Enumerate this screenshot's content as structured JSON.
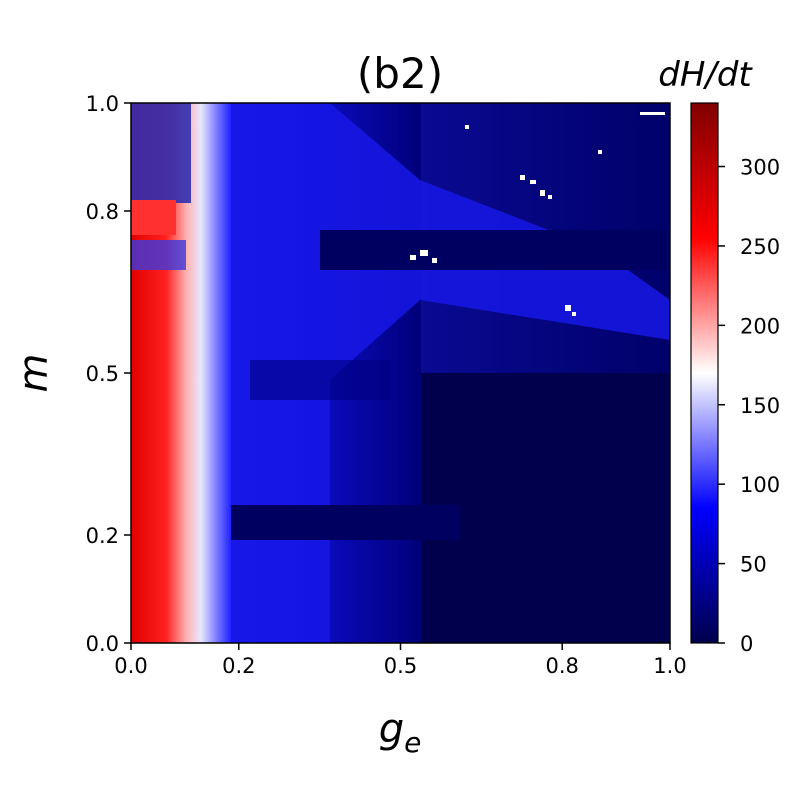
{
  "chart_data": {
    "type": "heatmap",
    "title": "(b2)",
    "xlabel": "g",
    "xlabel_subscript": "e",
    "ylabel": "m",
    "xlim": [
      0.0,
      1.0
    ],
    "ylim": [
      0.0,
      1.0
    ],
    "x_ticks": [
      "0.0",
      "0.2",
      "0.5",
      "0.8",
      "1.0"
    ],
    "x_tick_values": [
      0.0,
      0.2,
      0.5,
      0.8,
      1.0
    ],
    "y_ticks": [
      "0.0",
      "0.2",
      "0.5",
      "0.8",
      "1.0"
    ],
    "y_tick_values": [
      0.0,
      0.2,
      0.5,
      0.8,
      1.0
    ],
    "colorbar": {
      "label": "dH/dt",
      "colormap": "seismic",
      "range": [
        0,
        340
      ],
      "ticks": [
        "0",
        "50",
        "100",
        "150",
        "200",
        "250",
        "300"
      ],
      "tick_values": [
        0,
        50,
        100,
        150,
        200,
        250,
        300
      ]
    },
    "regions": [
      {
        "g_e": [
          0.0,
          0.08
        ],
        "m": [
          0.0,
          0.68
        ],
        "dHdt_approx": 260
      },
      {
        "g_e": [
          0.0,
          0.08
        ],
        "m": [
          0.76,
          0.82
        ],
        "dHdt_approx": 270
      },
      {
        "g_e": [
          0.08,
          0.16
        ],
        "m": [
          0.0,
          0.7
        ],
        "dHdt_approx": 180
      },
      {
        "g_e": [
          0.16,
          0.35
        ],
        "m": [
          0.0,
          0.75
        ],
        "dHdt_approx": 110
      },
      {
        "g_e": [
          0.35,
          1.0
        ],
        "m": [
          0.0,
          0.5
        ],
        "dHdt_approx": 10
      },
      {
        "g_e": [
          0.3,
          1.0
        ],
        "m": [
          0.5,
          1.0
        ],
        "dHdt_approx": 60
      },
      {
        "g_e": [
          0.14,
          0.55
        ],
        "m": [
          0.2,
          0.26
        ],
        "dHdt_approx": 20
      },
      {
        "g_e": [
          0.45,
          1.0
        ],
        "m": [
          0.68,
          0.74
        ],
        "dHdt_approx": 15
      }
    ]
  }
}
